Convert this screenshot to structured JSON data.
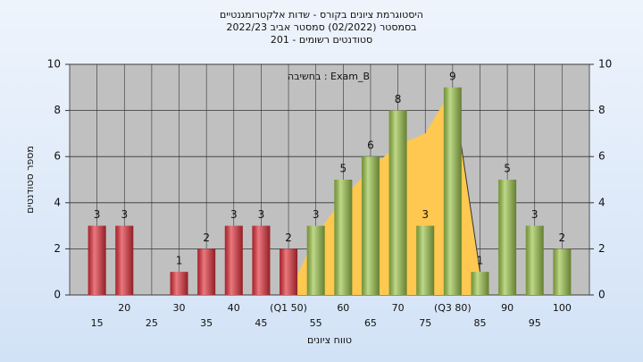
{
  "chart_data": {
    "type": "bar",
    "title": "היסטוגרמת ציונים בקורס - שדות אלקטרומגנטיים",
    "subtitle": "בסמסטר  (02/2022)  סמסטר אביב 2022/23",
    "subtitle2": "סטודנטים רשומים - 201",
    "annotation": "בחשיבה : Exam_B",
    "x_label": "טווח ציונים",
    "y_label": "מספר סטודנטים",
    "categories": [
      "15",
      "20",
      "25",
      "30",
      "35",
      "40",
      "45",
      "(Q1 50)",
      "55",
      "60",
      "65",
      "70",
      "75",
      "(Q3 80)",
      "85",
      "90",
      "95",
      "100"
    ],
    "values": [
      3,
      3,
      0,
      1,
      2,
      3,
      3,
      2,
      3,
      5,
      6,
      8,
      3,
      9,
      1,
      5,
      3,
      2
    ],
    "colors": [
      "#e0303a",
      "#e0303a",
      "#e0303a",
      "#e0303a",
      "#e0303a",
      "#e0303a",
      "#e0303a",
      "#e0303a",
      "#9cc44a",
      "#9cc44a",
      "#9cc44a",
      "#9cc44a",
      "#9cc44a",
      "#9cc44a",
      "#9cc44a",
      "#9cc44a",
      "#9cc44a",
      "#9cc44a"
    ],
    "area": {
      "color": "#ffc850",
      "x": [
        50,
        55,
        60,
        65,
        70,
        75,
        80,
        85
      ],
      "values": [
        0,
        2.6,
        4.2,
        5.5,
        6.5,
        7,
        9,
        1
      ]
    },
    "ylim": [
      0,
      10
    ],
    "yticks": [
      0,
      2,
      4,
      6,
      8,
      10
    ],
    "y2lim": [
      0,
      10
    ],
    "y2ticks": [
      0,
      2,
      4,
      6,
      8,
      10
    ],
    "grid": true
  }
}
